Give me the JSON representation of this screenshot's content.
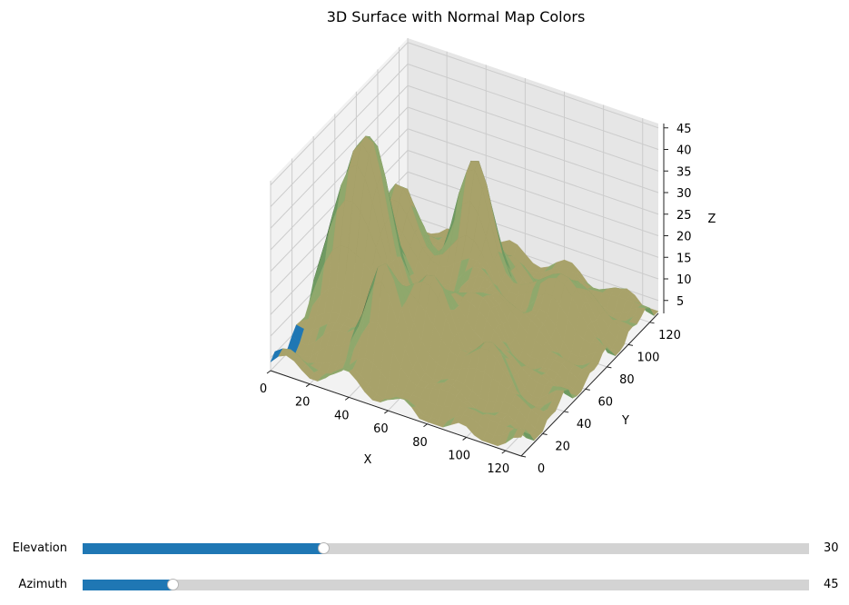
{
  "chart_data": {
    "type": "surface3d",
    "title": "3D Surface with Normal Map Colors",
    "xlabel": "X",
    "ylabel": "Y",
    "zlabel": "Z",
    "xlim": [
      0,
      128
    ],
    "ylim": [
      0,
      128
    ],
    "zlim": [
      2,
      46
    ],
    "xticks": [
      0,
      20,
      40,
      60,
      80,
      100,
      120
    ],
    "yticks": [
      0,
      20,
      40,
      60,
      80,
      100,
      120
    ],
    "zticks": [
      5,
      10,
      15,
      20,
      25,
      30,
      35,
      40,
      45
    ],
    "view": {
      "elevation": 30,
      "azimuth": 45
    },
    "grid": true,
    "surface_colors": [
      "#4a6e45",
      "#6f9a62",
      "#8fa86c",
      "#a8a26a",
      "#3b5236",
      "#2a3a28",
      "#1f77b4"
    ],
    "peaks": [
      {
        "x": 20,
        "y": 50,
        "z": 44,
        "sigma": 12
      },
      {
        "x": 55,
        "y": 90,
        "z": 30,
        "sigma": 10
      },
      {
        "x": 22,
        "y": 82,
        "z": 24,
        "sigma": 9
      },
      {
        "x": 75,
        "y": 60,
        "z": 14,
        "sigma": 14
      },
      {
        "x": 60,
        "y": 35,
        "z": 18,
        "sigma": 11
      },
      {
        "x": 100,
        "y": 90,
        "z": 15,
        "sigma": 10
      },
      {
        "x": 95,
        "y": 30,
        "z": 10,
        "sigma": 9
      },
      {
        "x": 45,
        "y": 20,
        "z": 22,
        "sigma": 8
      }
    ],
    "base_level": 4
  },
  "sliders": [
    {
      "label": "Elevation",
      "value": "30",
      "min": 0,
      "max": 90,
      "fraction": 0.333
    },
    {
      "label": "Azimuth",
      "value": "45",
      "min": 0,
      "max": 360,
      "fraction": 0.125
    }
  ],
  "colors": {
    "track": "#d3d3d3",
    "fill": "#1f77b4",
    "pane": "#f2f2f2",
    "pane_dark": "#e6e6e6",
    "grid": "#cccccc"
  }
}
